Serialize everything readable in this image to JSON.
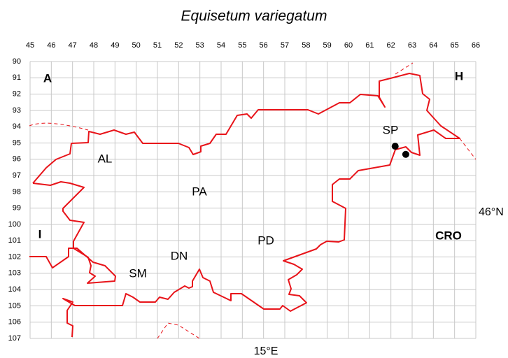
{
  "title": "Equisetum variegatum",
  "columns": [
    45,
    46,
    47,
    48,
    49,
    50,
    51,
    52,
    53,
    54,
    55,
    56,
    57,
    58,
    59,
    60,
    61,
    62,
    63,
    64,
    65,
    66
  ],
  "rows": [
    90,
    91,
    92,
    93,
    94,
    95,
    96,
    97,
    98,
    99,
    100,
    101,
    102,
    103,
    104,
    105,
    106,
    107
  ],
  "countries": {
    "north": "A",
    "east": "H",
    "west": "I",
    "south": "CRO"
  },
  "regions": {
    "al": "AL",
    "pa": "PA",
    "pd": "PD",
    "dn": "DN",
    "sm": "SM",
    "sp": "SP"
  },
  "latitude": "46°N",
  "longitude": "15°E",
  "records": [
    {
      "x": 62.2,
      "y": 95.2
    },
    {
      "x": 62.7,
      "y": 95.7
    }
  ]
}
